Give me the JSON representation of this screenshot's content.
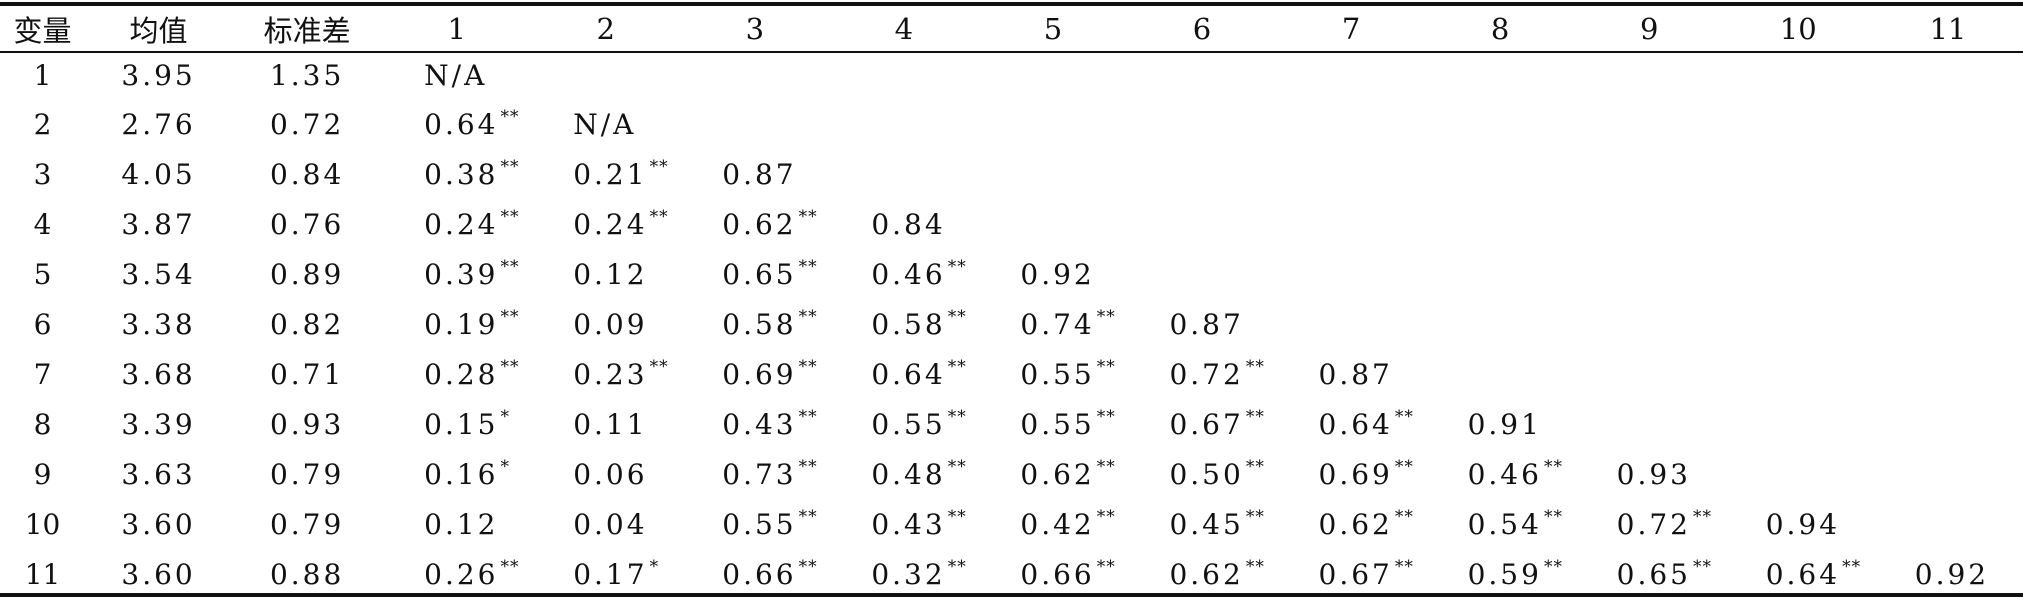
{
  "table": {
    "headers": [
      "变量",
      "均值",
      "标准差",
      "1",
      "2",
      "3",
      "4",
      "5",
      "6",
      "7",
      "8",
      "9",
      "10",
      "11"
    ],
    "rows": [
      {
        "var": "1",
        "mean": "3.95",
        "sd": "1.35",
        "cells": [
          {
            "v": "N/A",
            "s": ""
          }
        ]
      },
      {
        "var": "2",
        "mean": "2.76",
        "sd": "0.72",
        "cells": [
          {
            "v": "0.64",
            "s": "**"
          },
          {
            "v": "N/A",
            "s": ""
          }
        ]
      },
      {
        "var": "3",
        "mean": "4.05",
        "sd": "0.84",
        "cells": [
          {
            "v": "0.38",
            "s": "**"
          },
          {
            "v": "0.21",
            "s": "**"
          },
          {
            "v": "0.87",
            "s": ""
          }
        ]
      },
      {
        "var": "4",
        "mean": "3.87",
        "sd": "0.76",
        "cells": [
          {
            "v": "0.24",
            "s": "**"
          },
          {
            "v": "0.24",
            "s": "**"
          },
          {
            "v": "0.62",
            "s": "**"
          },
          {
            "v": "0.84",
            "s": ""
          }
        ]
      },
      {
        "var": "5",
        "mean": "3.54",
        "sd": "0.89",
        "cells": [
          {
            "v": "0.39",
            "s": "**"
          },
          {
            "v": "0.12",
            "s": ""
          },
          {
            "v": "0.65",
            "s": "**"
          },
          {
            "v": "0.46",
            "s": "**"
          },
          {
            "v": "0.92",
            "s": ""
          }
        ]
      },
      {
        "var": "6",
        "mean": "3.38",
        "sd": "0.82",
        "cells": [
          {
            "v": "0.19",
            "s": "**"
          },
          {
            "v": "0.09",
            "s": ""
          },
          {
            "v": "0.58",
            "s": "**"
          },
          {
            "v": "0.58",
            "s": "**"
          },
          {
            "v": "0.74",
            "s": "**"
          },
          {
            "v": "0.87",
            "s": ""
          }
        ]
      },
      {
        "var": "7",
        "mean": "3.68",
        "sd": "0.71",
        "cells": [
          {
            "v": "0.28",
            "s": "**"
          },
          {
            "v": "0.23",
            "s": "**"
          },
          {
            "v": "0.69",
            "s": "**"
          },
          {
            "v": "0.64",
            "s": "**"
          },
          {
            "v": "0.55",
            "s": "**"
          },
          {
            "v": "0.72",
            "s": "**"
          },
          {
            "v": "0.87",
            "s": ""
          }
        ]
      },
      {
        "var": "8",
        "mean": "3.39",
        "sd": "0.93",
        "cells": [
          {
            "v": "0.15",
            "s": "*"
          },
          {
            "v": "0.11",
            "s": ""
          },
          {
            "v": "0.43",
            "s": "**"
          },
          {
            "v": "0.55",
            "s": "**"
          },
          {
            "v": "0.55",
            "s": "**"
          },
          {
            "v": "0.67",
            "s": "**"
          },
          {
            "v": "0.64",
            "s": "**"
          },
          {
            "v": "0.91",
            "s": ""
          }
        ]
      },
      {
        "var": "9",
        "mean": "3.63",
        "sd": "0.79",
        "cells": [
          {
            "v": "0.16",
            "s": "*"
          },
          {
            "v": "0.06",
            "s": ""
          },
          {
            "v": "0.73",
            "s": "**"
          },
          {
            "v": "0.48",
            "s": "**"
          },
          {
            "v": "0.62",
            "s": "**"
          },
          {
            "v": "0.50",
            "s": "**"
          },
          {
            "v": "0.69",
            "s": "**"
          },
          {
            "v": "0.46",
            "s": "**"
          },
          {
            "v": "0.93",
            "s": ""
          }
        ]
      },
      {
        "var": "10",
        "mean": "3.60",
        "sd": "0.79",
        "cells": [
          {
            "v": "0.12",
            "s": ""
          },
          {
            "v": "0.04",
            "s": ""
          },
          {
            "v": "0.55",
            "s": "**"
          },
          {
            "v": "0.43",
            "s": "**"
          },
          {
            "v": "0.42",
            "s": "**"
          },
          {
            "v": "0.45",
            "s": "**"
          },
          {
            "v": "0.62",
            "s": "**"
          },
          {
            "v": "0.54",
            "s": "**"
          },
          {
            "v": "0.72",
            "s": "**"
          },
          {
            "v": "0.94",
            "s": ""
          }
        ]
      },
      {
        "var": "11",
        "mean": "3.60",
        "sd": "0.88",
        "cells": [
          {
            "v": "0.26",
            "s": "**"
          },
          {
            "v": "0.17",
            "s": "*"
          },
          {
            "v": "0.66",
            "s": "**"
          },
          {
            "v": "0.32",
            "s": "**"
          },
          {
            "v": "0.66",
            "s": "**"
          },
          {
            "v": "0.62",
            "s": "**"
          },
          {
            "v": "0.67",
            "s": "**"
          },
          {
            "v": "0.59",
            "s": "**"
          },
          {
            "v": "0.65",
            "s": "**"
          },
          {
            "v": "0.64",
            "s": "**"
          },
          {
            "v": "0.92",
            "s": ""
          }
        ]
      }
    ]
  }
}
